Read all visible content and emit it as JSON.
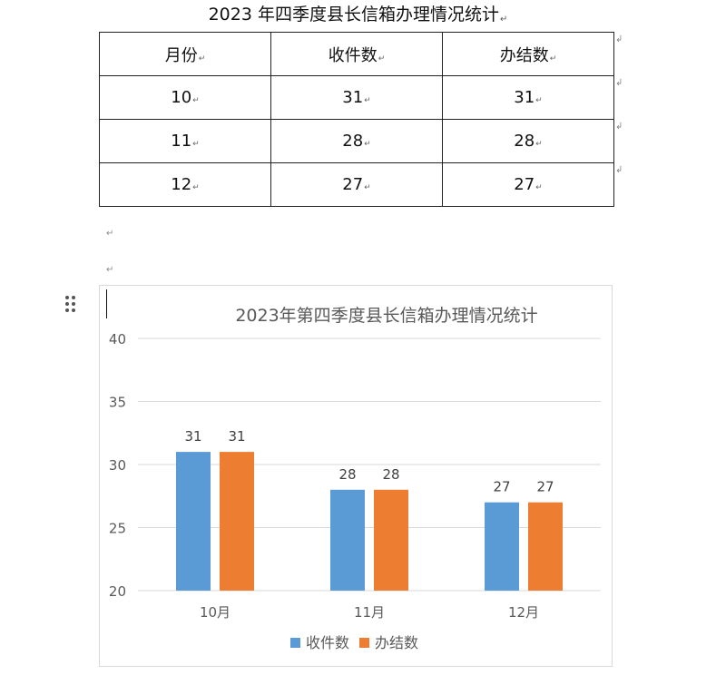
{
  "document": {
    "title": "2023 年四季度县长信箱办理情况统计",
    "para_mark": "↵",
    "row_end_mark": "↲"
  },
  "table": {
    "headers": [
      "月份",
      "收件数",
      "办结数"
    ],
    "rows": [
      [
        "10",
        "31",
        "31"
      ],
      [
        "11",
        "28",
        "28"
      ],
      [
        "12",
        "27",
        "27"
      ]
    ]
  },
  "chart_data": {
    "type": "bar",
    "title": "2023年第四季度县长信箱办理情况统计",
    "categories": [
      "10月",
      "11月",
      "12月"
    ],
    "series": [
      {
        "name": "收件数",
        "values": [
          31,
          28,
          27
        ],
        "color": "#5b9bd5"
      },
      {
        "name": "办结数",
        "values": [
          31,
          28,
          27
        ],
        "color": "#ed7d31"
      }
    ],
    "ylim": [
      20,
      40
    ],
    "yticks": [
      20,
      25,
      30,
      35,
      40
    ],
    "grid": true,
    "legend_position": "bottom",
    "data_labels": true
  }
}
